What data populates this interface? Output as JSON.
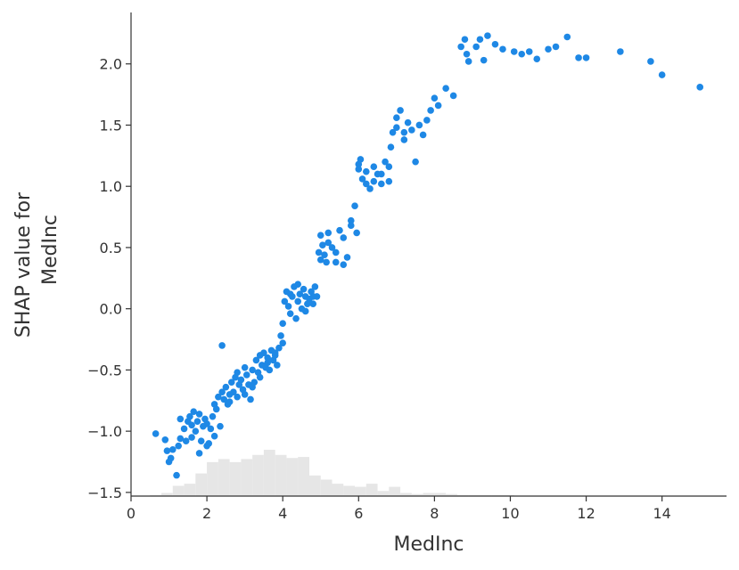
{
  "chart_data": {
    "type": "scatter",
    "xlabel": "MedInc",
    "ylabel_lines": [
      "SHAP value for",
      "MedInc"
    ],
    "xlim": [
      0,
      15.7
    ],
    "ylim": [
      -1.53,
      2.42
    ],
    "xticks": [
      0,
      2,
      4,
      6,
      8,
      10,
      12,
      14
    ],
    "xtick_labels": [
      "0",
      "2",
      "4",
      "6",
      "8",
      "10",
      "12",
      "14"
    ],
    "yticks": [
      -1.5,
      -1.0,
      -0.5,
      0.0,
      0.5,
      1.0,
      1.5,
      2.0
    ],
    "ytick_labels": [
      "−1.5",
      "−1.0",
      "−0.5",
      "0.0",
      "0.5",
      "1.0",
      "1.5",
      "2.0"
    ],
    "grid": false,
    "point_color": "#1e88e5",
    "histogram_color": "#e6e6e6",
    "histogram": {
      "bin_width": 0.3,
      "start": 0.5,
      "counts": [
        1,
        3,
        10,
        12,
        22,
        33,
        36,
        33,
        36,
        40,
        45,
        40,
        37,
        38,
        20,
        16,
        12,
        10,
        9,
        12,
        5,
        9,
        3,
        2,
        3,
        3,
        2,
        1,
        1,
        1,
        1,
        1,
        0,
        0,
        0,
        0,
        0,
        0,
        0,
        0,
        0,
        0,
        0,
        0,
        0,
        0,
        0,
        0,
        0,
        0
      ]
    },
    "series": [
      {
        "points": [
          [
            0.65,
            -1.02
          ],
          [
            0.9,
            -1.07
          ],
          [
            0.95,
            -1.16
          ],
          [
            1.0,
            -1.25
          ],
          [
            1.05,
            -1.22
          ],
          [
            1.1,
            -1.15
          ],
          [
            1.2,
            -1.36
          ],
          [
            1.25,
            -1.12
          ],
          [
            1.3,
            -1.06
          ],
          [
            1.4,
            -0.98
          ],
          [
            1.45,
            -1.08
          ],
          [
            1.5,
            -0.92
          ],
          [
            1.55,
            -0.88
          ],
          [
            1.6,
            -0.95
          ],
          [
            1.65,
            -0.84
          ],
          [
            1.7,
            -1.0
          ],
          [
            1.75,
            -0.92
          ],
          [
            1.8,
            -0.86
          ],
          [
            1.85,
            -1.08
          ],
          [
            1.9,
            -0.96
          ],
          [
            1.95,
            -0.9
          ],
          [
            2.0,
            -0.94
          ],
          [
            2.05,
            -1.1
          ],
          [
            2.1,
            -0.98
          ],
          [
            2.15,
            -0.88
          ],
          [
            2.2,
            -1.04
          ],
          [
            2.25,
            -0.82
          ],
          [
            2.3,
            -0.72
          ],
          [
            2.35,
            -0.96
          ],
          [
            2.4,
            -0.3
          ],
          [
            2.45,
            -0.74
          ],
          [
            2.5,
            -0.64
          ],
          [
            2.55,
            -0.78
          ],
          [
            2.6,
            -0.7
          ],
          [
            2.65,
            -0.6
          ],
          [
            2.7,
            -0.68
          ],
          [
            2.75,
            -0.56
          ],
          [
            2.8,
            -0.72
          ],
          [
            2.85,
            -0.62
          ],
          [
            2.9,
            -0.58
          ],
          [
            2.95,
            -0.66
          ],
          [
            3.0,
            -0.7
          ],
          [
            3.05,
            -0.54
          ],
          [
            3.1,
            -0.62
          ],
          [
            3.15,
            -0.74
          ],
          [
            3.2,
            -0.5
          ],
          [
            3.25,
            -0.6
          ],
          [
            3.3,
            -0.42
          ],
          [
            3.35,
            -0.52
          ],
          [
            3.4,
            -0.38
          ],
          [
            3.45,
            -0.46
          ],
          [
            3.5,
            -0.36
          ],
          [
            3.55,
            -0.48
          ],
          [
            3.6,
            -0.4
          ],
          [
            3.65,
            -0.5
          ],
          [
            3.7,
            -0.34
          ],
          [
            3.75,
            -0.42
          ],
          [
            3.8,
            -0.38
          ],
          [
            3.85,
            -0.46
          ],
          [
            3.9,
            -0.32
          ],
          [
            3.95,
            -0.22
          ],
          [
            4.0,
            -0.12
          ],
          [
            4.05,
            0.06
          ],
          [
            4.1,
            0.14
          ],
          [
            4.15,
            0.02
          ],
          [
            4.2,
            -0.04
          ],
          [
            4.25,
            0.1
          ],
          [
            4.3,
            0.18
          ],
          [
            4.35,
            -0.08
          ],
          [
            4.4,
            0.06
          ],
          [
            4.45,
            0.12
          ],
          [
            4.5,
            0.0
          ],
          [
            4.55,
            0.16
          ],
          [
            4.6,
            0.1
          ],
          [
            4.65,
            0.04
          ],
          [
            4.7,
            0.08
          ],
          [
            4.75,
            0.14
          ],
          [
            4.8,
            0.1
          ],
          [
            4.85,
            0.18
          ],
          [
            4.9,
            0.1
          ],
          [
            4.95,
            0.46
          ],
          [
            5.0,
            0.6
          ],
          [
            5.05,
            0.52
          ],
          [
            5.1,
            0.44
          ],
          [
            5.15,
            0.38
          ],
          [
            5.2,
            0.54
          ],
          [
            5.3,
            0.5
          ],
          [
            5.4,
            0.38
          ],
          [
            5.5,
            0.64
          ],
          [
            5.6,
            0.36
          ],
          [
            5.7,
            0.42
          ],
          [
            5.8,
            0.72
          ],
          [
            5.9,
            0.84
          ],
          [
            5.95,
            0.62
          ],
          [
            6.0,
            1.14
          ],
          [
            6.05,
            1.22
          ],
          [
            6.1,
            1.06
          ],
          [
            6.2,
            1.02
          ],
          [
            6.3,
            0.98
          ],
          [
            6.4,
            1.16
          ],
          [
            6.5,
            1.1
          ],
          [
            6.6,
            1.02
          ],
          [
            6.7,
            1.2
          ],
          [
            6.8,
            1.04
          ],
          [
            6.85,
            1.32
          ],
          [
            6.9,
            1.44
          ],
          [
            7.0,
            1.56
          ],
          [
            7.1,
            1.62
          ],
          [
            7.2,
            1.38
          ],
          [
            7.3,
            1.52
          ],
          [
            7.4,
            1.46
          ],
          [
            7.5,
            1.2
          ],
          [
            7.6,
            1.5
          ],
          [
            7.7,
            1.42
          ],
          [
            7.8,
            1.54
          ],
          [
            7.9,
            1.62
          ],
          [
            8.0,
            1.72
          ],
          [
            8.1,
            1.66
          ],
          [
            8.3,
            1.8
          ],
          [
            8.5,
            1.74
          ],
          [
            8.7,
            2.14
          ],
          [
            8.8,
            2.2
          ],
          [
            8.85,
            2.08
          ],
          [
            8.9,
            2.02
          ],
          [
            9.1,
            2.14
          ],
          [
            9.2,
            2.2
          ],
          [
            9.3,
            2.03
          ],
          [
            9.4,
            2.23
          ],
          [
            9.6,
            2.16
          ],
          [
            9.8,
            2.12
          ],
          [
            10.1,
            2.1
          ],
          [
            10.3,
            2.08
          ],
          [
            10.5,
            2.1
          ],
          [
            10.7,
            2.04
          ],
          [
            11.0,
            2.12
          ],
          [
            11.2,
            2.14
          ],
          [
            11.5,
            2.22
          ],
          [
            11.8,
            2.05
          ],
          [
            12.0,
            2.05
          ],
          [
            12.9,
            2.1
          ],
          [
            13.7,
            2.02
          ],
          [
            14.0,
            1.91
          ],
          [
            15.0,
            1.81
          ],
          [
            1.3,
            -0.9
          ],
          [
            1.6,
            -1.05
          ],
          [
            1.8,
            -1.18
          ],
          [
            2.0,
            -1.12
          ],
          [
            2.2,
            -0.78
          ],
          [
            2.4,
            -0.68
          ],
          [
            2.6,
            -0.76
          ],
          [
            2.8,
            -0.52
          ],
          [
            3.0,
            -0.48
          ],
          [
            3.2,
            -0.64
          ],
          [
            3.4,
            -0.56
          ],
          [
            3.6,
            -0.44
          ],
          [
            3.8,
            -0.36
          ],
          [
            4.0,
            -0.28
          ],
          [
            4.2,
            0.12
          ],
          [
            4.4,
            0.2
          ],
          [
            4.6,
            -0.02
          ],
          [
            4.8,
            0.04
          ],
          [
            5.0,
            0.4
          ],
          [
            5.2,
            0.62
          ],
          [
            5.4,
            0.46
          ],
          [
            5.6,
            0.58
          ],
          [
            5.8,
            0.68
          ],
          [
            6.0,
            1.18
          ],
          [
            6.2,
            1.12
          ],
          [
            6.4,
            1.04
          ],
          [
            6.6,
            1.1
          ],
          [
            6.8,
            1.16
          ],
          [
            7.0,
            1.48
          ],
          [
            7.2,
            1.44
          ]
        ]
      }
    ]
  }
}
